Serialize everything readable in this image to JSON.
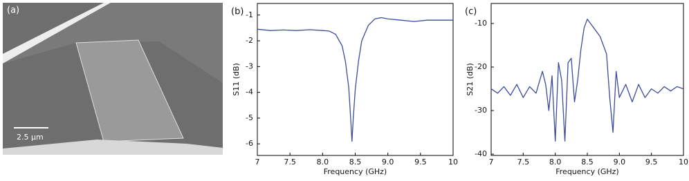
{
  "image_panel": {
    "label": "(a)",
    "scale_bar": "2.5 μm"
  },
  "chart_data": [
    {
      "type": "line",
      "panel_label": "(b)",
      "x_label": "Frequency (GHz)",
      "y_label": "S11 (dB)",
      "xlim": [
        7,
        10
      ],
      "xticks": [
        7,
        7.5,
        {
          "value": 8,
          "label": "8.0"
        },
        8.5,
        {
          "value": 9,
          "label": "9.0"
        },
        9.5,
        10
      ],
      "ylim": [
        -6.45,
        -0.55
      ],
      "yticks": [
        -6,
        -5,
        -4,
        -3,
        -2,
        -1
      ],
      "series": [
        {
          "color": "#3b4a9c",
          "x": [
            7.0,
            7.2,
            7.4,
            7.6,
            7.8,
            8.0,
            8.1,
            8.2,
            8.3,
            8.35,
            8.4,
            8.43,
            8.45,
            8.47,
            8.5,
            8.55,
            8.6,
            8.7,
            8.8,
            8.9,
            9.0,
            9.2,
            9.4,
            9.6,
            9.8,
            10.0
          ],
          "values": [
            -1.55,
            -1.6,
            -1.58,
            -1.6,
            -1.57,
            -1.6,
            -1.62,
            -1.75,
            -2.2,
            -2.8,
            -3.8,
            -5.0,
            -5.9,
            -5.0,
            -3.9,
            -2.8,
            -2.0,
            -1.4,
            -1.15,
            -1.1,
            -1.15,
            -1.2,
            -1.25,
            -1.2,
            -1.2,
            -1.2
          ]
        }
      ]
    },
    {
      "type": "line",
      "panel_label": "(c)",
      "x_label": "Frequency (GHz)",
      "y_label": "S21 (dB)",
      "xlim": [
        7,
        10
      ],
      "xticks": [
        7,
        7.5,
        {
          "value": 8,
          "label": "8.0"
        },
        8.5,
        {
          "value": 9,
          "label": "9.0"
        },
        9.5,
        10
      ],
      "ylim": [
        -40.3,
        -5.4
      ],
      "yticks": [
        -40,
        -30,
        -20,
        -10
      ],
      "series": [
        {
          "color": "#3b4a9c",
          "x": [
            7.0,
            7.1,
            7.2,
            7.3,
            7.4,
            7.5,
            7.6,
            7.7,
            7.8,
            7.85,
            7.9,
            7.95,
            8.0,
            8.05,
            8.1,
            8.15,
            8.2,
            8.25,
            8.3,
            8.35,
            8.4,
            8.45,
            8.5,
            8.55,
            8.6,
            8.7,
            8.8,
            8.85,
            8.9,
            8.95,
            9.0,
            9.1,
            9.2,
            9.3,
            9.4,
            9.5,
            9.6,
            9.7,
            9.8,
            9.9,
            10.0
          ],
          "values": [
            -25,
            -26,
            -24.5,
            -26.5,
            -24,
            -27,
            -24.5,
            -26,
            -21,
            -24,
            -30,
            -22,
            -37,
            -19,
            -23,
            -37,
            -19,
            -18,
            -28,
            -23,
            -16,
            -11,
            -9,
            -10,
            -11,
            -13,
            -17,
            -27,
            -35,
            -21,
            -27,
            -24,
            -28,
            -24,
            -27,
            -25,
            -26,
            -24.5,
            -25.5,
            -24.5,
            -25
          ]
        }
      ]
    }
  ]
}
